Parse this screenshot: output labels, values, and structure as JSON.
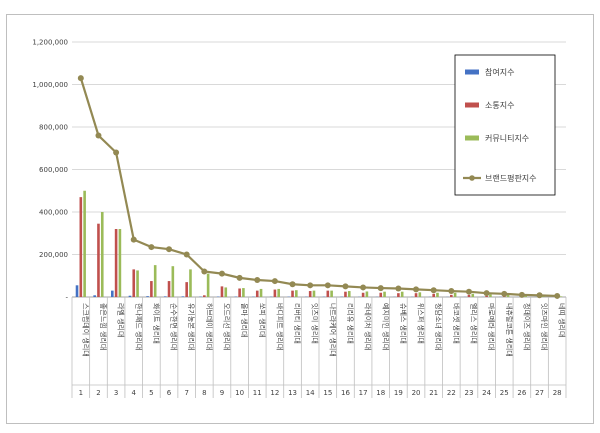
{
  "chart_data": {
    "type": "bar",
    "categories": [
      "스크럽데이 생리대",
      "좋은느낌 생리대",
      "라엘 생리대",
      "한나패드 생리대",
      "화이트 생리대",
      "순수한면 생리대",
      "유기농본 생리대",
      "허브데이 생리대",
      "오드리선 생리대",
      "올마 생리대",
      "쏘피 생리대",
      "바디피트 생리대",
      "리버티 생리대",
      "잇츠미 생리대",
      "나트라케어 생리대",
      "리리유 생리대",
      "라네이처 생리대",
      "예지미인 생리대",
      "슈베스 생리대",
      "위스퍼 생리대",
      "청담소녀 생리대",
      "바코셋 생리대",
      "엘리스 생리대",
      "마로메라 생리대",
      "내츄럴코튼 생리대",
      "청데이즈 생리대",
      "잇즈마인 생리대",
      "네띠 생리대"
    ],
    "category_numbers": [
      "1",
      "2",
      "3",
      "4",
      "5",
      "6",
      "7",
      "8",
      "9",
      "10",
      "11",
      "12",
      "13",
      "14",
      "15",
      "16",
      "17",
      "18",
      "19",
      "20",
      "21",
      "22",
      "23",
      "24",
      "25",
      "26",
      "27",
      "28"
    ],
    "series": [
      {
        "name": "참여지수",
        "color": "#4472c4",
        "kind": "bar",
        "values": [
          55000,
          8000,
          30000,
          6000,
          4000,
          3000,
          3000,
          2000,
          2000,
          2000,
          1500,
          1500,
          1500,
          1500,
          1500,
          1500,
          1000,
          1000,
          1000,
          1000,
          1000,
          800,
          800,
          800,
          800,
          500,
          500,
          300
        ]
      },
      {
        "name": "소통지수",
        "color": "#c0504d",
        "kind": "bar",
        "values": [
          470000,
          345000,
          320000,
          130000,
          75000,
          75000,
          70000,
          8000,
          50000,
          40000,
          30000,
          35000,
          30000,
          28000,
          30000,
          25000,
          20000,
          20000,
          18000,
          18000,
          15000,
          10000,
          10000,
          5000,
          5000,
          3000,
          2000,
          1000
        ]
      },
      {
        "name": "커뮤니티지수",
        "color": "#9bbb59",
        "kind": "bar",
        "values": [
          500000,
          400000,
          320000,
          125000,
          150000,
          145000,
          130000,
          110000,
          45000,
          42000,
          38000,
          38000,
          32000,
          30000,
          30000,
          28000,
          26000,
          25000,
          25000,
          22000,
          20000,
          20000,
          15000,
          12000,
          10000,
          8000,
          5000,
          3000
        ]
      },
      {
        "name": "브랜드평판지수",
        "color": "#938953",
        "kind": "line",
        "values": [
          1030000,
          760000,
          680000,
          270000,
          235000,
          225000,
          200000,
          120000,
          110000,
          90000,
          80000,
          75000,
          60000,
          55000,
          55000,
          50000,
          45000,
          42000,
          40000,
          36000,
          32000,
          28000,
          25000,
          18000,
          15000,
          10000,
          8000,
          5000
        ]
      }
    ],
    "yticks": [
      "-",
      "200,000",
      "400,000",
      "600,000",
      "800,000",
      "1,000,000",
      "1,200,000"
    ],
    "ylim": [
      0,
      1200000
    ],
    "grid": true,
    "legend": "right",
    "title": "",
    "xlabel": "",
    "ylabel": ""
  }
}
